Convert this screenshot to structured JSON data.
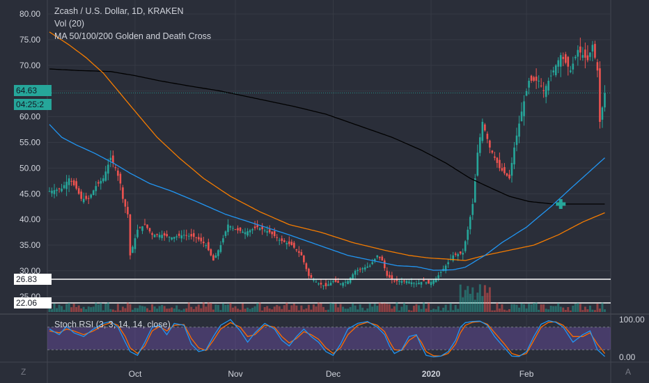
{
  "legend": {
    "title": "Zcash / U.S. Dollar, 1D, KRAKEN",
    "volume": "Vol (20)",
    "indicator": "MA 50/100/200 Golden and Death Cross",
    "stoch": "Stoch RSI (3, 3, 14, 14, close)"
  },
  "price_labels": {
    "last": "64.63",
    "countdown": "04:25:2",
    "line1": "26.83",
    "line2": "22.06"
  },
  "axis_labels": {
    "left_corner": "Z",
    "right_corner": "A"
  },
  "colors": {
    "background": "#2a2e39",
    "up": "#26a69a",
    "down": "#ef5350",
    "ma50": "#2196f3",
    "ma100": "#f57c00",
    "ma200": "#000000",
    "stoch_k": "#2196f3",
    "stoch_d": "#ff6d00",
    "stoch_band": "#7e57c2"
  },
  "chart_data": [
    {
      "type": "candlestick",
      "title": "Zcash / U.S. Dollar, 1D, KRAKEN",
      "y_ticks": [
        "80.00",
        "75.00",
        "70.00",
        "65.00",
        "60.00",
        "55.00",
        "50.00",
        "45.00",
        "40.00",
        "35.00",
        "30.00",
        "25.00"
      ],
      "ylim": [
        22,
        82
      ],
      "x_ticks": [
        "Oct",
        "Nov",
        "Dec",
        "2020",
        "Feb"
      ],
      "last_price": 64.63,
      "horizontal_lines": [
        26.83,
        22.06
      ],
      "close_key": [
        [
          0,
          45.5
        ],
        [
          5,
          46
        ],
        [
          8,
          48
        ],
        [
          11,
          46
        ],
        [
          13,
          44
        ],
        [
          16,
          44
        ],
        [
          19,
          46.5
        ],
        [
          22,
          48
        ],
        [
          25,
          52
        ],
        [
          27,
          50
        ],
        [
          29,
          47
        ],
        [
          30,
          44
        ],
        [
          32,
          41
        ],
        [
          33,
          33
        ],
        [
          36,
          38
        ],
        [
          39,
          39
        ],
        [
          42,
          37
        ],
        [
          46,
          37
        ],
        [
          50,
          36.5
        ],
        [
          55,
          37
        ],
        [
          60,
          36.5
        ],
        [
          64,
          35
        ],
        [
          67,
          32
        ],
        [
          70,
          35
        ],
        [
          73,
          39
        ],
        [
          76,
          38
        ],
        [
          80,
          37.5
        ],
        [
          85,
          38.5
        ],
        [
          90,
          37.5
        ],
        [
          94,
          36
        ],
        [
          99,
          35
        ],
        [
          103,
          33
        ],
        [
          106,
          29
        ],
        [
          110,
          27.5
        ],
        [
          113,
          27
        ],
        [
          116,
          28
        ],
        [
          119,
          27.5
        ],
        [
          122,
          28
        ],
        [
          125,
          30
        ],
        [
          128,
          30.5
        ],
        [
          131,
          31
        ],
        [
          134,
          33
        ],
        [
          136,
          32
        ],
        [
          138,
          29
        ],
        [
          141,
          28
        ],
        [
          146,
          28
        ],
        [
          150,
          27.5
        ],
        [
          153,
          28
        ],
        [
          155,
          27.5
        ],
        [
          158,
          28.5
        ],
        [
          162,
          31
        ],
        [
          165,
          33
        ],
        [
          169,
          33.5
        ],
        [
          171,
          38
        ],
        [
          173,
          43
        ],
        [
          175,
          53
        ],
        [
          177,
          59
        ],
        [
          180,
          54
        ],
        [
          184,
          50
        ],
        [
          188,
          48
        ],
        [
          190,
          54
        ],
        [
          193,
          61
        ],
        [
          196,
          67
        ],
        [
          200,
          67
        ],
        [
          202,
          65
        ],
        [
          205,
          68
        ],
        [
          209,
          72
        ],
        [
          213,
          69
        ],
        [
          216,
          73
        ],
        [
          220,
          71
        ],
        [
          222,
          74
        ],
        [
          224,
          69
        ],
        [
          225,
          59
        ],
        [
          227,
          64.6
        ]
      ],
      "ma50_key": [
        [
          0,
          58.5
        ],
        [
          5,
          56
        ],
        [
          11,
          54.5
        ],
        [
          18,
          53
        ],
        [
          26,
          51
        ],
        [
          33,
          49
        ],
        [
          41,
          47
        ],
        [
          50,
          45.5
        ],
        [
          60,
          43.5
        ],
        [
          72,
          41
        ],
        [
          85,
          39
        ],
        [
          98,
          37
        ],
        [
          110,
          35
        ],
        [
          122,
          33
        ],
        [
          134,
          31.8
        ],
        [
          142,
          31
        ],
        [
          150,
          30.8
        ],
        [
          157,
          30.1
        ],
        [
          165,
          30.2
        ],
        [
          170,
          30.7
        ],
        [
          178,
          33
        ],
        [
          185,
          35.5
        ],
        [
          195,
          38.5
        ],
        [
          205,
          42.5
        ],
        [
          213,
          46
        ],
        [
          220,
          49
        ],
        [
          227,
          52
        ]
      ],
      "ma100_key": [
        [
          0,
          76.5
        ],
        [
          8,
          74
        ],
        [
          15,
          71.5
        ],
        [
          22,
          68.5
        ],
        [
          29,
          64.5
        ],
        [
          36,
          60.5
        ],
        [
          44,
          56
        ],
        [
          53,
          52
        ],
        [
          63,
          48
        ],
        [
          74,
          44.5
        ],
        [
          86,
          41.5
        ],
        [
          98,
          39
        ],
        [
          111,
          37.5
        ],
        [
          124,
          35.5
        ],
        [
          137,
          34
        ],
        [
          147,
          33
        ],
        [
          155,
          32.5
        ],
        [
          162,
          32.3
        ],
        [
          170,
          32
        ],
        [
          178,
          33
        ],
        [
          188,
          34
        ],
        [
          198,
          35
        ],
        [
          208,
          37
        ],
        [
          218,
          39.5
        ],
        [
          227,
          41.3
        ]
      ],
      "ma200_key": [
        [
          0,
          69.3
        ],
        [
          12,
          69
        ],
        [
          25,
          68.8
        ],
        [
          35,
          68
        ],
        [
          45,
          67
        ],
        [
          57,
          66
        ],
        [
          70,
          65
        ],
        [
          85,
          63.5
        ],
        [
          100,
          62
        ],
        [
          113,
          60.5
        ],
        [
          125,
          58.5
        ],
        [
          140,
          56
        ],
        [
          152,
          53.5
        ],
        [
          162,
          51
        ],
        [
          172,
          48
        ],
        [
          181,
          46
        ],
        [
          188,
          44.5
        ],
        [
          196,
          43.5
        ],
        [
          206,
          43
        ],
        [
          216,
          43
        ],
        [
          227,
          43
        ]
      ],
      "cross_marker": {
        "day": 209,
        "price": 43
      }
    },
    {
      "type": "bar",
      "title": "Vol (20)",
      "description_note": "volume histogram bars in the volume pane"
    },
    {
      "type": "line",
      "title": "Stoch RSI (3, 3, 14, 14, close)",
      "y_ticks": [
        "100.00",
        "0.00"
      ],
      "ylim": [
        0,
        100
      ],
      "band": [
        20,
        80
      ],
      "k_key": [
        [
          0,
          75
        ],
        [
          4,
          60
        ],
        [
          7,
          82
        ],
        [
          10,
          65
        ],
        [
          14,
          55
        ],
        [
          18,
          75
        ],
        [
          22,
          90
        ],
        [
          25,
          95
        ],
        [
          28,
          80
        ],
        [
          31,
          40
        ],
        [
          33,
          15
        ],
        [
          36,
          5
        ],
        [
          39,
          40
        ],
        [
          42,
          80
        ],
        [
          45,
          85
        ],
        [
          48,
          60
        ],
        [
          51,
          90
        ],
        [
          55,
          85
        ],
        [
          58,
          35
        ],
        [
          61,
          15
        ],
        [
          64,
          20
        ],
        [
          67,
          55
        ],
        [
          70,
          85
        ],
        [
          74,
          100
        ],
        [
          78,
          70
        ],
        [
          81,
          40
        ],
        [
          84,
          65
        ],
        [
          88,
          90
        ],
        [
          92,
          75
        ],
        [
          95,
          45
        ],
        [
          98,
          30
        ],
        [
          101,
          55
        ],
        [
          104,
          75
        ],
        [
          107,
          55
        ],
        [
          110,
          40
        ],
        [
          113,
          15
        ],
        [
          116,
          5
        ],
        [
          119,
          35
        ],
        [
          122,
          75
        ],
        [
          126,
          90
        ],
        [
          130,
          95
        ],
        [
          134,
          80
        ],
        [
          137,
          60
        ],
        [
          139,
          30
        ],
        [
          141,
          10
        ],
        [
          144,
          20
        ],
        [
          147,
          55
        ],
        [
          150,
          60
        ],
        [
          152,
          30
        ],
        [
          154,
          5
        ],
        [
          157,
          1
        ],
        [
          160,
          3
        ],
        [
          163,
          15
        ],
        [
          166,
          45
        ],
        [
          168,
          80
        ],
        [
          170,
          92
        ],
        [
          173,
          95
        ],
        [
          176,
          96
        ],
        [
          179,
          85
        ],
        [
          182,
          55
        ],
        [
          186,
          25
        ],
        [
          189,
          3
        ],
        [
          192,
          2
        ],
        [
          195,
          15
        ],
        [
          198,
          55
        ],
        [
          201,
          88
        ],
        [
          204,
          97
        ],
        [
          207,
          93
        ],
        [
          210,
          80
        ],
        [
          214,
          40
        ],
        [
          218,
          60
        ],
        [
          221,
          70
        ],
        [
          224,
          20
        ],
        [
          227,
          2
        ]
      ],
      "d_key": [
        [
          0,
          70
        ],
        [
          4,
          65
        ],
        [
          7,
          75
        ],
        [
          10,
          70
        ],
        [
          14,
          60
        ],
        [
          18,
          70
        ],
        [
          22,
          85
        ],
        [
          25,
          92
        ],
        [
          28,
          85
        ],
        [
          31,
          55
        ],
        [
          33,
          25
        ],
        [
          36,
          10
        ],
        [
          39,
          30
        ],
        [
          42,
          70
        ],
        [
          45,
          82
        ],
        [
          48,
          70
        ],
        [
          51,
          85
        ],
        [
          55,
          87
        ],
        [
          58,
          50
        ],
        [
          61,
          25
        ],
        [
          64,
          18
        ],
        [
          67,
          45
        ],
        [
          70,
          75
        ],
        [
          74,
          92
        ],
        [
          78,
          80
        ],
        [
          81,
          55
        ],
        [
          84,
          60
        ],
        [
          88,
          85
        ],
        [
          92,
          80
        ],
        [
          95,
          55
        ],
        [
          98,
          38
        ],
        [
          101,
          50
        ],
        [
          104,
          68
        ],
        [
          107,
          60
        ],
        [
          110,
          48
        ],
        [
          113,
          25
        ],
        [
          116,
          10
        ],
        [
          119,
          25
        ],
        [
          122,
          60
        ],
        [
          126,
          85
        ],
        [
          130,
          93
        ],
        [
          134,
          85
        ],
        [
          137,
          68
        ],
        [
          139,
          42
        ],
        [
          141,
          20
        ],
        [
          144,
          18
        ],
        [
          147,
          45
        ],
        [
          150,
          58
        ],
        [
          152,
          40
        ],
        [
          154,
          15
        ],
        [
          157,
          4
        ],
        [
          160,
          3
        ],
        [
          163,
          10
        ],
        [
          166,
          35
        ],
        [
          168,
          65
        ],
        [
          170,
          85
        ],
        [
          173,
          93
        ],
        [
          176,
          95
        ],
        [
          179,
          88
        ],
        [
          182,
          65
        ],
        [
          186,
          35
        ],
        [
          189,
          10
        ],
        [
          192,
          4
        ],
        [
          195,
          10
        ],
        [
          198,
          45
        ],
        [
          201,
          80
        ],
        [
          204,
          93
        ],
        [
          207,
          94
        ],
        [
          210,
          85
        ],
        [
          214,
          55
        ],
        [
          218,
          55
        ],
        [
          221,
          65
        ],
        [
          224,
          35
        ],
        [
          227,
          10
        ]
      ]
    }
  ]
}
